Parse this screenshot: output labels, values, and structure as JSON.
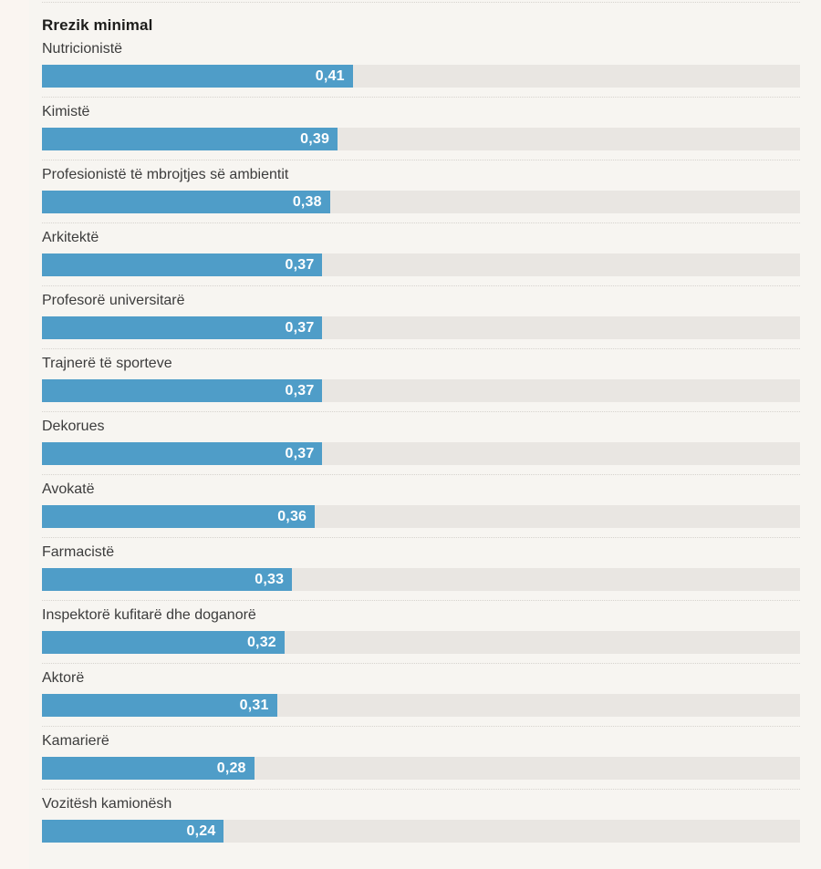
{
  "page": {
    "background": "#f7f5f1",
    "left_strip_color": "#faf5f1"
  },
  "chart_data": {
    "type": "bar",
    "orientation": "horizontal",
    "title": "Rrezik minimal",
    "categories": [
      "Nutricionistë",
      "Kimistë",
      "Profesionistë të mbrojtjes së ambientit",
      "Arkitektë",
      "Profesorë universitarë",
      "Trajnerë të sporteve",
      "Dekorues",
      "Avokatë",
      "Farmacistë",
      "Inspektorë kufitarë dhe doganorë",
      "Aktorë",
      "Kamarierë",
      "Vozitësh kamionësh"
    ],
    "values": [
      0.41,
      0.39,
      0.38,
      0.37,
      0.37,
      0.37,
      0.37,
      0.36,
      0.33,
      0.32,
      0.31,
      0.28,
      0.24
    ],
    "value_labels": [
      "0,41",
      "0,39",
      "0,38",
      "0,37",
      "0,37",
      "0,37",
      "0,37",
      "0,36",
      "0,33",
      "0,32",
      "0,31",
      "0,28",
      "0,24"
    ],
    "xlim": [
      0,
      1
    ],
    "xlabel": "",
    "ylabel": "",
    "grid": false,
    "legend": false,
    "bar_color": "#4f9dc8",
    "track_color": "#e9e6e2",
    "value_label_color": "#ffffff",
    "separator_style": "dotted"
  }
}
